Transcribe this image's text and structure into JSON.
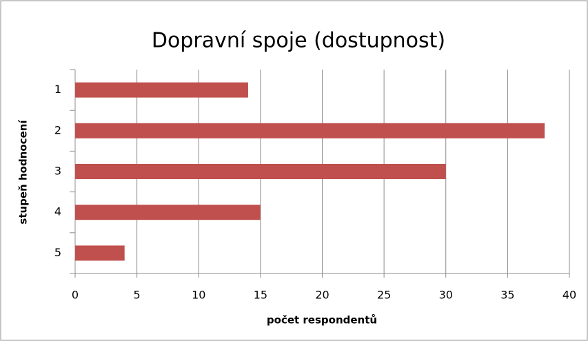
{
  "chart_data": {
    "type": "bar",
    "orientation": "horizontal",
    "title": "Dopravní spoje (dostupnost)",
    "categories": [
      "1",
      "2",
      "3",
      "4",
      "5"
    ],
    "values": [
      14,
      38,
      30,
      15,
      4
    ],
    "color": "#c0504d",
    "xlim": [
      0,
      40
    ],
    "xticks": [
      0,
      5,
      10,
      15,
      20,
      25,
      30,
      35,
      40
    ],
    "x_label": "počet respondentů",
    "y_label": "stupeň hodnocení",
    "grid": true
  }
}
